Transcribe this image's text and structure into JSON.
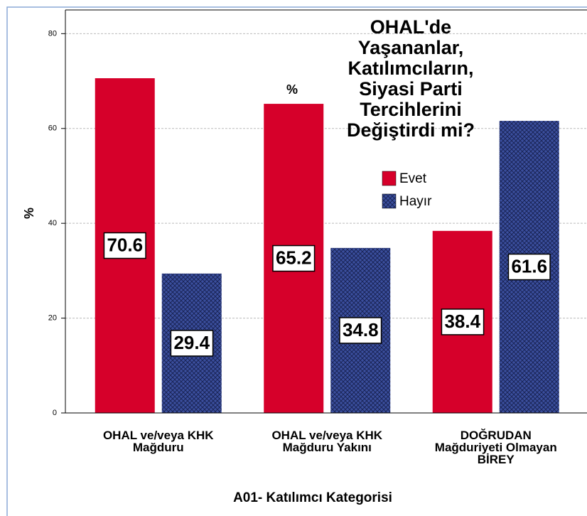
{
  "chart_data": {
    "type": "bar",
    "legend_title": "OHAL'de\nYaşananlar,\nKatılımcıların,\nSiyasi Parti\nTercihlerini\nDeğiştirdi mi?",
    "annotation": "%",
    "x_label": "A01- Katılımcı Kategorisi",
    "y_label": "%",
    "categories": [
      "OHAL ve/veya KHK\nMağduru",
      "OHAL ve/veya KHK\nMağduru Yakını",
      "DOĞRUDAN\nMağduriyeti Olmayan\nBİREY"
    ],
    "series": [
      {
        "name": "Evet",
        "color": "#d6002a",
        "values": [
          70.6,
          65.2,
          38.4
        ]
      },
      {
        "name": "Hayır",
        "color": "#3b4f9e",
        "hatch": true,
        "values": [
          29.4,
          34.8,
          61.6
        ]
      }
    ],
    "ylim": [
      0,
      85
    ],
    "yticks": [
      0,
      20,
      40,
      60,
      80
    ],
    "grid": true
  }
}
